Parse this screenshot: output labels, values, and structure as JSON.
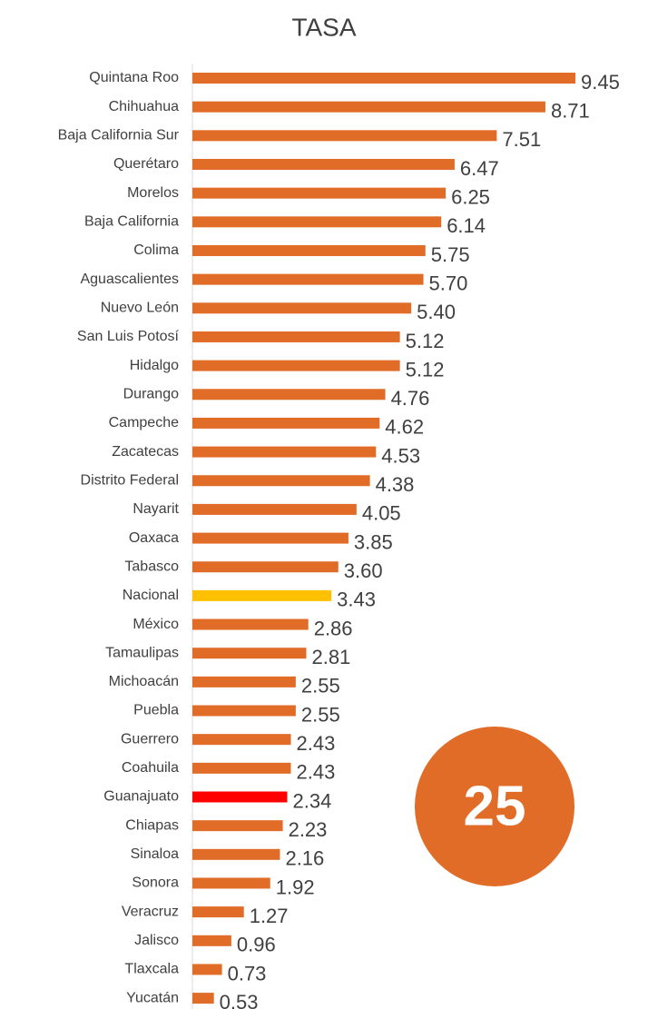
{
  "chart_data": {
    "type": "barh",
    "title": "TASA",
    "categories": [
      "Quintana Roo",
      "Chihuahua",
      "Baja California Sur",
      "Querétaro",
      "Morelos",
      "Baja California",
      "Colima",
      "Aguascalientes",
      "Nuevo León",
      "San Luis Potosí",
      "Hidalgo",
      "Durango",
      "Campeche",
      "Zacatecas",
      "Distrito Federal",
      "Nayarit",
      "Oaxaca",
      "Tabasco",
      "Nacional",
      "México",
      "Tamaulipas",
      "Michoacán",
      "Puebla",
      "Guerrero",
      "Coahuila",
      "Guanajuato",
      "Chiapas",
      "Sinaloa",
      "Sonora",
      "Veracruz",
      "Jalisco",
      "Tlaxcala",
      "Yucatán"
    ],
    "values": [
      9.45,
      8.71,
      7.51,
      6.47,
      6.25,
      6.14,
      5.75,
      5.7,
      5.4,
      5.12,
      5.12,
      4.76,
      4.62,
      4.53,
      4.38,
      4.05,
      3.85,
      3.6,
      3.43,
      2.86,
      2.81,
      2.55,
      2.55,
      2.43,
      2.43,
      2.34,
      2.23,
      2.16,
      1.92,
      1.27,
      0.96,
      0.73,
      0.53
    ],
    "value_labels": [
      "9.45",
      "8.71",
      "7.51",
      "6.47",
      "6.25",
      "6.14",
      "5.75",
      "5.70",
      "5.40",
      "5.12",
      "5.12",
      "4.76",
      "4.62",
      "4.53",
      "4.38",
      "4.05",
      "3.85",
      "3.60",
      "3.43",
      "2.86",
      "2.81",
      "2.55",
      "2.55",
      "2.43",
      "2.43",
      "2.34",
      "2.23",
      "2.16",
      "1.92",
      "1.27",
      "0.96",
      "0.73",
      "0.53"
    ],
    "colors": [
      "#e06c28",
      "#e06c28",
      "#e06c28",
      "#e06c28",
      "#e06c28",
      "#e06c28",
      "#e06c28",
      "#e06c28",
      "#e06c28",
      "#e06c28",
      "#e06c28",
      "#e06c28",
      "#e06c28",
      "#e06c28",
      "#e06c28",
      "#e06c28",
      "#e06c28",
      "#e06c28",
      "#ffc000",
      "#e06c28",
      "#e06c28",
      "#e06c28",
      "#e06c28",
      "#e06c28",
      "#e06c28",
      "#ff0000",
      "#e06c28",
      "#e06c28",
      "#e06c28",
      "#e06c28",
      "#e06c28",
      "#e06c28",
      "#e06c28"
    ],
    "annotation": "25",
    "annotation_color": "#e06c28"
  }
}
